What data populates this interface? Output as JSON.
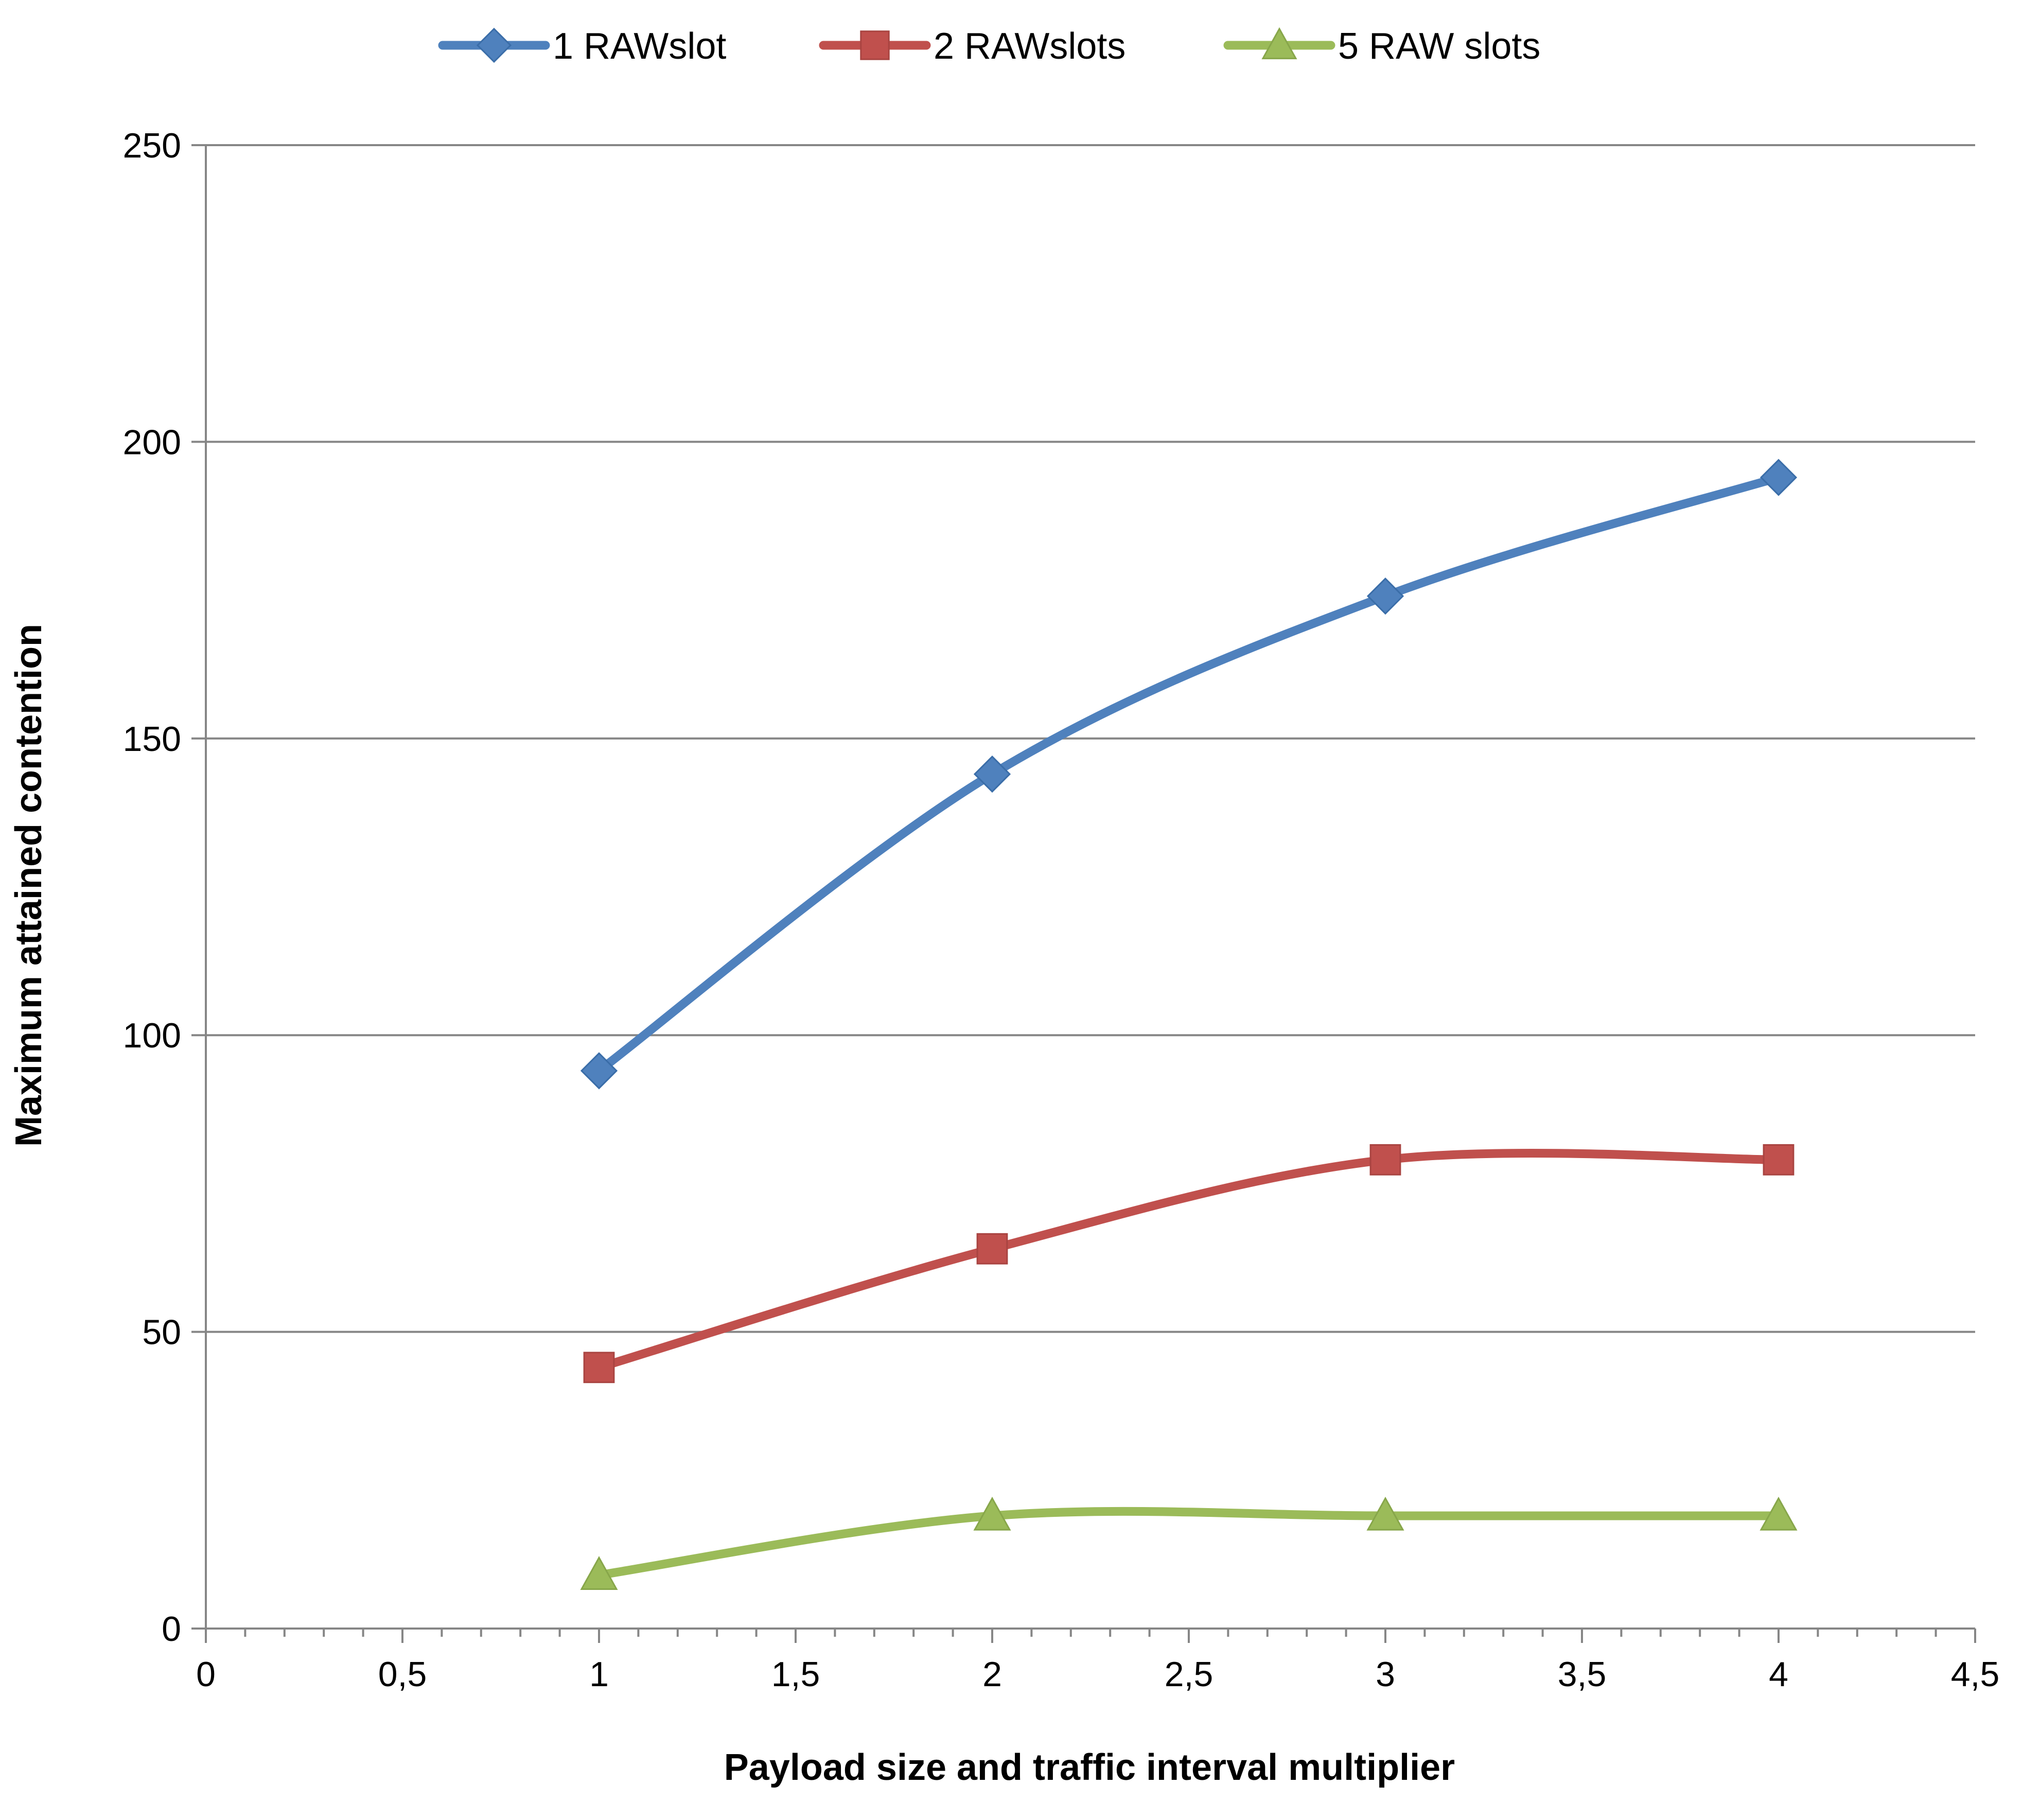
{
  "chart_data": {
    "type": "line",
    "title": "",
    "xlabel": "Payload size and traffic interval multiplier",
    "ylabel": "Maximum attained contention",
    "xlim": [
      0,
      4.5
    ],
    "ylim": [
      0,
      250
    ],
    "x_ticks": [
      0,
      0.5,
      1,
      1.5,
      2,
      2.5,
      3,
      3.5,
      4,
      4.5
    ],
    "x_tick_labels": [
      "0",
      "0,5",
      "1",
      "1,5",
      "2",
      "2,5",
      "3",
      "3,5",
      "4",
      "4,5"
    ],
    "y_ticks": [
      0,
      50,
      100,
      150,
      200,
      250
    ],
    "y_tick_labels": [
      "0",
      "50",
      "100",
      "150",
      "200",
      "250"
    ],
    "grid": "horizontal",
    "smoothed": true,
    "legend_position": "top",
    "x": [
      1,
      2,
      3,
      4
    ],
    "series": [
      {
        "name": "1 RAWslot",
        "values": [
          94,
          144,
          174,
          194
        ],
        "color": "#4f81bd",
        "marker": "diamond"
      },
      {
        "name": "2 RAWslots",
        "values": [
          44,
          64,
          79,
          79
        ],
        "color": "#c0504d",
        "marker": "square"
      },
      {
        "name": "5 RAW slots",
        "values": [
          9,
          19,
          19,
          19
        ],
        "color": "#9bbb59",
        "marker": "triangle"
      }
    ]
  }
}
